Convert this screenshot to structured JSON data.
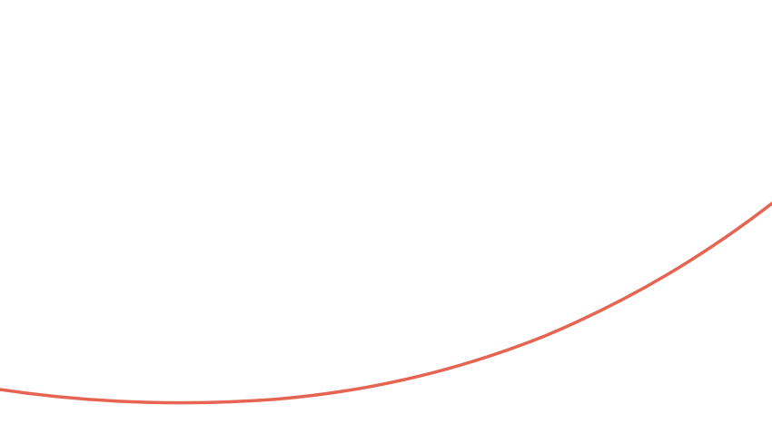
{
  "colors": {
    "background": "#ffffff",
    "curve": "#e66452"
  }
}
